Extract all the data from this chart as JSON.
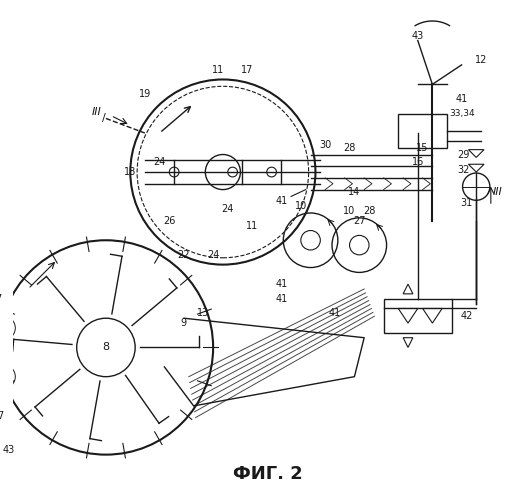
{
  "title": "ФИГ. 2",
  "bg_color": "#ffffff",
  "line_color": "#1a1a1a",
  "title_fontsize": 13,
  "fig_width": 5.23,
  "fig_height": 5.0,
  "dpi": 100
}
